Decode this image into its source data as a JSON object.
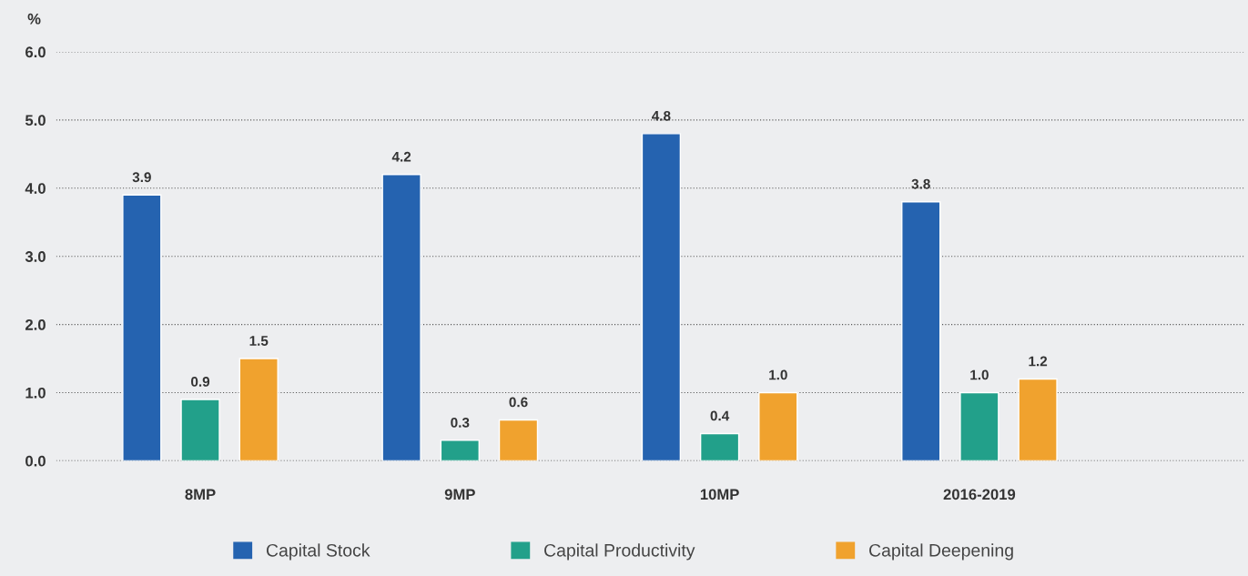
{
  "chart_data": {
    "type": "bar",
    "ylabel": "%",
    "categories": [
      "8MP",
      "9MP",
      "10MP",
      "2016-2019"
    ],
    "series": [
      {
        "name": "Capital Stock",
        "color": "#2563b0",
        "values": [
          3.9,
          4.2,
          4.8,
          3.8
        ],
        "value_labels": [
          "3.9",
          "4.2",
          "4.8",
          "3.8"
        ]
      },
      {
        "name": "Capital Productivity",
        "color": "#22a08a",
        "values": [
          0.9,
          0.3,
          0.4,
          1.0
        ],
        "value_labels": [
          "0.9",
          "0.3",
          "0.4",
          "1.0"
        ]
      },
      {
        "name": "Capital Deepening",
        "color": "#f0a22e",
        "values": [
          1.5,
          0.6,
          1.0,
          1.2
        ],
        "value_labels": [
          "1.5",
          "0.6",
          "1.0",
          "1.2"
        ]
      }
    ],
    "ylim": [
      0,
      6
    ],
    "yticks": [
      {
        "value": 0,
        "label": "0.0"
      },
      {
        "value": 1,
        "label": "1.0"
      },
      {
        "value": 2,
        "label": "2.0"
      },
      {
        "value": 3,
        "label": "3.0"
      },
      {
        "value": 4,
        "label": "4.0"
      },
      {
        "value": 5,
        "label": "5.0"
      },
      {
        "value": 6,
        "label": "6.0"
      }
    ],
    "grid": "y",
    "legend": "bottom"
  }
}
